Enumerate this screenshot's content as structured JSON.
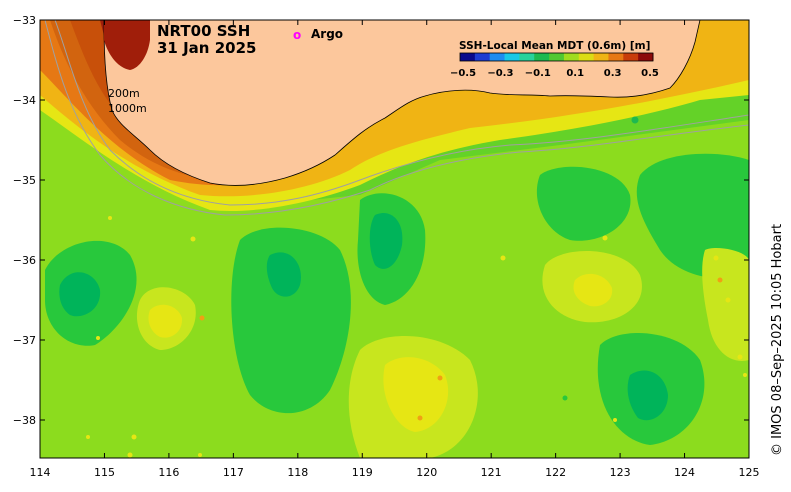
{
  "title": {
    "line1": "NRT00 SSH",
    "line2": "31 Jan 2025"
  },
  "legend": {
    "argo_marker": "o",
    "argo_label": "Argo",
    "argo_color": "#ff00ff"
  },
  "colorbar": {
    "title": "SSH-Local Mean MDT (0.6m) [m]",
    "ticks": [
      "−0.5",
      "−0.3",
      "−0.1",
      "0.1",
      "0.3",
      "0.5"
    ],
    "colors": [
      "#0a0a8c",
      "#1e3cd2",
      "#1e8cf0",
      "#19c8e6",
      "#28d29b",
      "#1eb950",
      "#50c832",
      "#a0dc1e",
      "#dcdc14",
      "#f0b414",
      "#e67814",
      "#c83c0a",
      "#8c0a0a"
    ]
  },
  "contours": {
    "label_200m": "200m",
    "label_1000m": "1000m"
  },
  "axes": {
    "x_ticks": [
      "114",
      "115",
      "116",
      "117",
      "118",
      "119",
      "120",
      "121",
      "122",
      "123",
      "124",
      "125"
    ],
    "y_ticks": [
      "−33",
      "−34",
      "−35",
      "−36",
      "−37",
      "−38"
    ]
  },
  "credit": "© IMOS 08–Sep–2025 10:05 Hobart",
  "colors": {
    "land": "#fcc79c",
    "ssh_low": "#00b45a",
    "ssh_mid": "#28c83c",
    "ssh_green": "#64d228",
    "ssh_yellowgreen": "#b4e61e",
    "ssh_yellow": "#e6e614",
    "ssh_orange": "#f0a014",
    "ssh_dark_orange": "#d2640f",
    "ssh_red": "#a01e0a"
  }
}
